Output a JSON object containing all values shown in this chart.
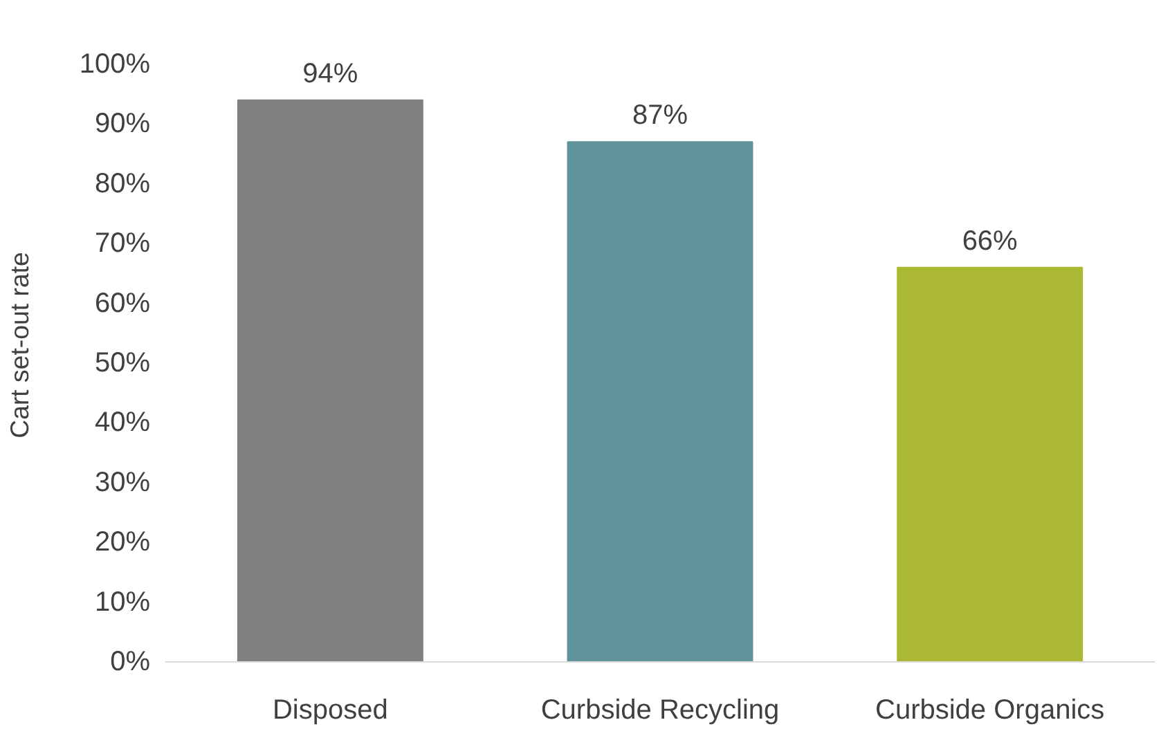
{
  "chart_data": {
    "type": "bar",
    "ylabel": "Cart set-out rate",
    "categories": [
      "Disposed",
      "Curbside Recycling",
      "Curbside Organics"
    ],
    "values": [
      94,
      87,
      66
    ],
    "colors": [
      "#7f7f7f",
      "#5f9399",
      "#aab834"
    ],
    "value_labels": [
      "94%",
      "87%",
      "66%"
    ],
    "ylim": [
      0,
      100
    ],
    "yticks": [
      {
        "value": 0,
        "label": "0%"
      },
      {
        "value": 10,
        "label": "10%"
      },
      {
        "value": 20,
        "label": "20%"
      },
      {
        "value": 30,
        "label": "30%"
      },
      {
        "value": 40,
        "label": "40%"
      },
      {
        "value": 50,
        "label": "50%"
      },
      {
        "value": 60,
        "label": "60%"
      },
      {
        "value": 70,
        "label": "70%"
      },
      {
        "value": 80,
        "label": "80%"
      },
      {
        "value": 90,
        "label": "90%"
      },
      {
        "value": 100,
        "label": "100%"
      }
    ],
    "grid": false
  }
}
